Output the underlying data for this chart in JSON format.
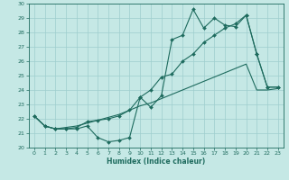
{
  "xlabel": "Humidex (Indice chaleur)",
  "xlim": [
    -0.5,
    23.5
  ],
  "ylim": [
    20,
    30
  ],
  "xticks": [
    0,
    1,
    2,
    3,
    4,
    5,
    6,
    7,
    8,
    9,
    10,
    11,
    12,
    13,
    14,
    15,
    16,
    17,
    18,
    19,
    20,
    21,
    22,
    23
  ],
  "yticks": [
    20,
    21,
    22,
    23,
    24,
    25,
    26,
    27,
    28,
    29,
    30
  ],
  "bg_color": "#c5e8e5",
  "grid_color": "#9ecece",
  "line_color": "#1e6b5e",
  "line1_x": [
    0,
    1,
    2,
    3,
    4,
    5,
    6,
    7,
    8,
    9,
    10,
    11,
    12,
    13,
    14,
    15,
    16,
    17,
    18,
    19,
    20,
    21,
    22,
    23
  ],
  "line1_y": [
    22.2,
    21.5,
    21.3,
    21.3,
    21.3,
    21.5,
    20.7,
    20.4,
    20.5,
    20.7,
    23.5,
    22.8,
    23.6,
    27.5,
    27.8,
    29.6,
    28.3,
    29.0,
    28.5,
    28.4,
    29.2,
    26.5,
    24.2,
    24.2
  ],
  "line2_x": [
    0,
    1,
    2,
    3,
    4,
    5,
    6,
    7,
    8,
    9,
    10,
    11,
    12,
    13,
    14,
    15,
    16,
    17,
    18,
    19,
    20,
    21,
    22,
    23
  ],
  "line2_y": [
    22.2,
    21.5,
    21.3,
    21.3,
    21.4,
    21.8,
    21.9,
    22.0,
    22.2,
    22.6,
    23.5,
    24.0,
    24.9,
    25.1,
    26.0,
    26.5,
    27.3,
    27.8,
    28.3,
    28.6,
    29.2,
    26.5,
    24.2,
    24.2
  ],
  "line3_x": [
    0,
    1,
    2,
    3,
    4,
    5,
    6,
    7,
    8,
    9,
    10,
    11,
    12,
    13,
    14,
    15,
    16,
    17,
    18,
    19,
    20,
    21,
    22,
    23
  ],
  "line3_y": [
    22.2,
    21.5,
    21.3,
    21.4,
    21.5,
    21.7,
    21.9,
    22.1,
    22.3,
    22.6,
    22.9,
    23.1,
    23.4,
    23.7,
    24.0,
    24.3,
    24.6,
    24.9,
    25.2,
    25.5,
    25.8,
    24.0,
    24.0,
    24.1
  ]
}
